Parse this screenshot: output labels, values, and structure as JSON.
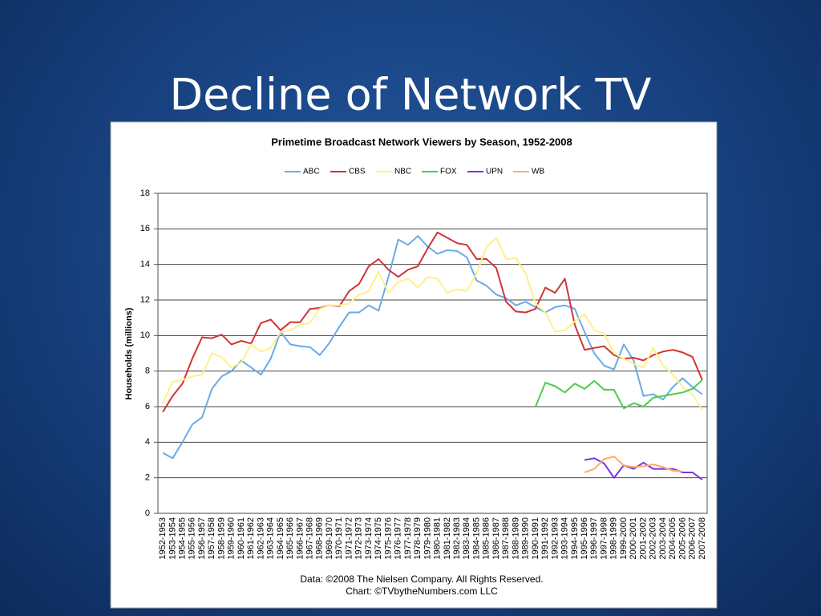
{
  "slide_title": "Decline of Network TV",
  "chart_data": {
    "type": "line",
    "title": "Primetime Broadcast Network Viewers by Season, 1952-2008",
    "y_label": "Households (millions)",
    "notes": [
      "Data: ©2008 The Nielsen Company. All Rights Reserved.",
      "Chart: ©TVbytheNumbers.com LLC"
    ],
    "categories": [
      "1952-1953",
      "1953-1954",
      "1954-1955",
      "1955-1956",
      "1956-1957",
      "1957-1958",
      "1958-1959",
      "1959-1960",
      "1960-1961",
      "1961-1962",
      "1962-1963",
      "1963-1964",
      "1964-1965",
      "1965-1966",
      "1966-1967",
      "1967-1968",
      "1968-1969",
      "1969-1970",
      "1970-1971",
      "1971-1972",
      "1972-1973",
      "1973-1974",
      "1974-1975",
      "1975-1976",
      "1976-1977",
      "1977-1978",
      "1978-1979",
      "1979-1980",
      "1980-1981",
      "1981-1982",
      "1982-1983",
      "1983-1984",
      "1984-1985",
      "1985-1986",
      "1986-1987",
      "1987-1988",
      "1988-1989",
      "1989-1990",
      "1990-1991",
      "1991-1992",
      "1992-1993",
      "1993-1994",
      "1994-1995",
      "1995-1996",
      "1996-1997",
      "1997-1998",
      "1998-1999",
      "1999-2000",
      "2000-2001",
      "2001-2002",
      "2002-2003",
      "2003-2004",
      "2004-2005",
      "2005-2006",
      "2006-2007",
      "2007-2008"
    ],
    "series": [
      {
        "name": "ABC",
        "color": "#6aaae8",
        "values": [
          3.4,
          3.1,
          4.0,
          5.0,
          5.4,
          7.0,
          7.7,
          8.0,
          8.6,
          8.2,
          7.8,
          8.7,
          10.2,
          9.5,
          9.4,
          9.35,
          8.9,
          9.6,
          10.5,
          11.3,
          11.3,
          11.7,
          11.4,
          13.3,
          15.4,
          15.1,
          15.6,
          15.0,
          14.6,
          14.8,
          14.75,
          14.4,
          13.1,
          12.8,
          12.3,
          12.1,
          11.7,
          11.9,
          11.6,
          11.3,
          11.6,
          11.7,
          11.5,
          10.2,
          9.0,
          8.3,
          8.1,
          9.5,
          8.6,
          6.6,
          6.7,
          6.4,
          7.1,
          7.6,
          7.1,
          6.7
        ]
      },
      {
        "name": "CBS",
        "color": "#d03535",
        "values": [
          5.7,
          6.6,
          7.3,
          8.7,
          9.9,
          9.85,
          10.05,
          9.5,
          9.7,
          9.55,
          10.7,
          10.9,
          10.3,
          10.75,
          10.75,
          11.5,
          11.55,
          11.7,
          11.65,
          12.5,
          12.9,
          13.9,
          14.3,
          13.7,
          13.3,
          13.7,
          13.9,
          14.9,
          15.8,
          15.5,
          15.2,
          15.1,
          14.3,
          14.3,
          13.8,
          11.9,
          11.35,
          11.3,
          11.5,
          12.7,
          12.4,
          13.2,
          10.6,
          9.2,
          9.3,
          9.4,
          8.9,
          8.7,
          8.75,
          8.6,
          8.9,
          9.1,
          9.2,
          9.05,
          8.8,
          7.5
        ]
      },
      {
        "name": "NBC",
        "color": "#fff08a",
        "values": [
          6.2,
          7.4,
          7.5,
          7.7,
          7.8,
          9.0,
          8.8,
          8.2,
          8.5,
          9.5,
          9.1,
          9.3,
          10.2,
          10.3,
          10.6,
          10.7,
          11.5,
          11.7,
          11.7,
          11.8,
          12.3,
          12.5,
          13.6,
          12.4,
          13.0,
          13.2,
          12.7,
          13.3,
          13.2,
          12.4,
          12.6,
          12.5,
          13.5,
          15.0,
          15.5,
          14.3,
          14.35,
          13.5,
          11.8,
          11.3,
          10.2,
          10.3,
          10.8,
          11.2,
          10.3,
          10.1,
          9.0,
          8.7,
          8.4,
          8.2,
          9.3,
          8.3,
          7.8,
          7.1,
          6.7,
          5.8
        ]
      },
      {
        "name": "FOX",
        "color": "#4ccc4c",
        "values": [
          null,
          null,
          null,
          null,
          null,
          null,
          null,
          null,
          null,
          null,
          null,
          null,
          null,
          null,
          null,
          null,
          null,
          null,
          null,
          null,
          null,
          null,
          null,
          null,
          null,
          null,
          null,
          null,
          null,
          null,
          null,
          null,
          null,
          null,
          null,
          null,
          null,
          null,
          6.0,
          7.35,
          7.15,
          6.8,
          7.3,
          7.0,
          7.45,
          6.95,
          6.95,
          5.9,
          6.2,
          6.0,
          6.5,
          6.6,
          6.7,
          6.8,
          7.0,
          7.5
        ]
      },
      {
        "name": "UPN",
        "color": "#7a33dd",
        "values": [
          null,
          null,
          null,
          null,
          null,
          null,
          null,
          null,
          null,
          null,
          null,
          null,
          null,
          null,
          null,
          null,
          null,
          null,
          null,
          null,
          null,
          null,
          null,
          null,
          null,
          null,
          null,
          null,
          null,
          null,
          null,
          null,
          null,
          null,
          null,
          null,
          null,
          null,
          null,
          null,
          null,
          null,
          null,
          3.0,
          3.1,
          2.8,
          2.0,
          2.7,
          2.5,
          2.85,
          2.5,
          2.5,
          2.5,
          2.3,
          2.3,
          1.9
        ]
      },
      {
        "name": "WB",
        "color": "#ffaa66",
        "values": [
          null,
          null,
          null,
          null,
          null,
          null,
          null,
          null,
          null,
          null,
          null,
          null,
          null,
          null,
          null,
          null,
          null,
          null,
          null,
          null,
          null,
          null,
          null,
          null,
          null,
          null,
          null,
          null,
          null,
          null,
          null,
          null,
          null,
          null,
          null,
          null,
          null,
          null,
          null,
          null,
          null,
          null,
          null,
          2.3,
          2.5,
          3.05,
          3.2,
          2.7,
          2.6,
          2.65,
          2.75,
          2.6,
          2.4,
          2.35,
          null,
          null
        ]
      }
    ],
    "ylim": [
      0,
      18
    ],
    "yticks": [
      0,
      2,
      4,
      6,
      8,
      10,
      12,
      14,
      16,
      18
    ],
    "grid": true,
    "legend": "top"
  }
}
